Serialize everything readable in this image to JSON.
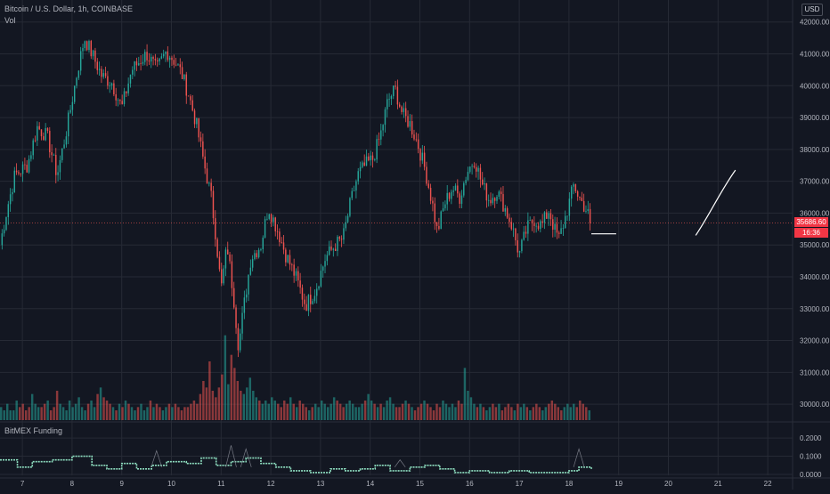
{
  "legend": {
    "symbol_line": "Bitcoin / U.S. Dollar, 1h, COINBASE",
    "volume_label": "Vol"
  },
  "currency": "USD",
  "price_tag": "35686.60",
  "countdown": "16:36",
  "colors": {
    "up": "#26a69a",
    "down": "#ef5350",
    "background": "#131722",
    "grid": "#262a35",
    "text": "#b2b5be",
    "funding": "#8fe0c1",
    "drawing": "#ffffff"
  },
  "chart_data": [
    {
      "type": "candlestick",
      "title": "Bitcoin / U.S. Dollar, 1h, COINBASE",
      "x_tick_labels": [
        "7",
        "8",
        "9",
        "10",
        "11",
        "12",
        "13",
        "14",
        "15",
        "16",
        "17",
        "18",
        "19",
        "20",
        "21",
        "22"
      ],
      "y_tick_labels": [
        "30000.00",
        "31000.00",
        "32000.00",
        "33000.00",
        "34000.00",
        "35000.00",
        "36000.00",
        "37000.00",
        "38000.00",
        "39000.00",
        "40000.00",
        "41000.00",
        "42000.00"
      ],
      "ylim": [
        29500,
        42300
      ],
      "xlim": [
        6.55,
        22.5
      ],
      "grid": true,
      "path_points": [
        [
          6.55,
          35000
        ],
        [
          6.7,
          36200
        ],
        [
          6.85,
          37200
        ],
        [
          7.1,
          37500
        ],
        [
          7.3,
          38700
        ],
        [
          7.5,
          38400
        ],
        [
          7.7,
          37200
        ],
        [
          7.9,
          38700
        ],
        [
          8.1,
          40400
        ],
        [
          8.25,
          41500
        ],
        [
          8.4,
          41000
        ],
        [
          8.6,
          40300
        ],
        [
          8.8,
          40100
        ],
        [
          9.0,
          39300
        ],
        [
          9.2,
          40500
        ],
        [
          9.5,
          41000
        ],
        [
          9.7,
          40500
        ],
        [
          9.9,
          41100
        ],
        [
          10.05,
          40800
        ],
        [
          10.2,
          40400
        ],
        [
          10.35,
          39700
        ],
        [
          10.5,
          38800
        ],
        [
          10.65,
          37600
        ],
        [
          10.8,
          36500
        ],
        [
          10.9,
          35200
        ],
        [
          11.0,
          33600
        ],
        [
          11.12,
          35000
        ],
        [
          11.25,
          33400
        ],
        [
          11.35,
          31800
        ],
        [
          11.45,
          33000
        ],
        [
          11.6,
          34600
        ],
        [
          11.8,
          35000
        ],
        [
          11.95,
          36200
        ],
        [
          12.15,
          35400
        ],
        [
          12.3,
          34700
        ],
        [
          12.5,
          34000
        ],
        [
          12.7,
          33100
        ],
        [
          12.9,
          33600
        ],
        [
          13.1,
          34600
        ],
        [
          13.3,
          35000
        ],
        [
          13.45,
          35200
        ],
        [
          13.6,
          36300
        ],
        [
          13.75,
          37200
        ],
        [
          13.9,
          37500
        ],
        [
          14.05,
          37700
        ],
        [
          14.2,
          38400
        ],
        [
          14.35,
          39500
        ],
        [
          14.5,
          39900
        ],
        [
          14.65,
          39100
        ],
        [
          14.8,
          38800
        ],
        [
          14.95,
          38200
        ],
        [
          15.1,
          37400
        ],
        [
          15.25,
          36300
        ],
        [
          15.35,
          35400
        ],
        [
          15.5,
          36300
        ],
        [
          15.65,
          36800
        ],
        [
          15.8,
          36500
        ],
        [
          15.95,
          37300
        ],
        [
          16.1,
          37700
        ],
        [
          16.25,
          36900
        ],
        [
          16.4,
          36400
        ],
        [
          16.55,
          36700
        ],
        [
          16.7,
          36200
        ],
        [
          16.85,
          35600
        ],
        [
          17.0,
          34700
        ],
        [
          17.15,
          35500
        ],
        [
          17.3,
          35800
        ],
        [
          17.45,
          35600
        ],
        [
          17.6,
          36100
        ],
        [
          17.7,
          35500
        ],
        [
          17.8,
          35200
        ],
        [
          17.95,
          36000
        ],
        [
          18.1,
          36900
        ],
        [
          18.2,
          36500
        ],
        [
          18.35,
          36100
        ],
        [
          18.45,
          35690
        ]
      ],
      "volume_scale_max": 30,
      "volume_bars": [
        4,
        3,
        5,
        3,
        3,
        6,
        4,
        5,
        3,
        4,
        8,
        5,
        4,
        4,
        5,
        6,
        3,
        4,
        9,
        5,
        4,
        3,
        6,
        4,
        5,
        7,
        4,
        3,
        5,
        6,
        4,
        8,
        10,
        7,
        6,
        5,
        4,
        3,
        5,
        4,
        6,
        5,
        4,
        3,
        4,
        5,
        3,
        4,
        6,
        4,
        5,
        4,
        3,
        4,
        5,
        4,
        5,
        4,
        3,
        4,
        4,
        5,
        6,
        5,
        8,
        12,
        10,
        18,
        9,
        7,
        10,
        14,
        26,
        11,
        20,
        16,
        12,
        9,
        8,
        10,
        13,
        9,
        7,
        6,
        5,
        6,
        5,
        7,
        6,
        5,
        4,
        6,
        5,
        7,
        5,
        4,
        6,
        5,
        4,
        3,
        4,
        5,
        4,
        6,
        5,
        4,
        5,
        7,
        6,
        5,
        4,
        5,
        6,
        5,
        4,
        4,
        5,
        6,
        8,
        6,
        5,
        4,
        5,
        4,
        6,
        7,
        5,
        4,
        4,
        5,
        6,
        5,
        4,
        3,
        4,
        5,
        6,
        5,
        4,
        3,
        5,
        4,
        6,
        5,
        4,
        5,
        4,
        6,
        5,
        16,
        9,
        7,
        5,
        4,
        5,
        4,
        3,
        4,
        5,
        4,
        5,
        3,
        4,
        5,
        4,
        3,
        5,
        4,
        5,
        4,
        3,
        4,
        5,
        4,
        3,
        4,
        5,
        6,
        5,
        4,
        3,
        4,
        5,
        4,
        5,
        4,
        6,
        5,
        4,
        3
      ],
      "drawings": [
        {
          "type": "horizontal_segment",
          "x": [
            18.45,
            18.95
          ],
          "y": 35350
        },
        {
          "type": "curve",
          "points": [
            [
              20.55,
              35300
            ],
            [
              20.85,
              36000
            ],
            [
              21.05,
              36700
            ],
            [
              21.35,
              37350
            ]
          ]
        }
      ]
    },
    {
      "type": "step",
      "title": "BitMEX Funding",
      "y_tick_labels": [
        "0.2000",
        "0.1000",
        "0.0000"
      ],
      "ylim": [
        -0.005,
        0.23
      ],
      "funding_steps": [
        [
          6.55,
          0.08
        ],
        [
          6.9,
          0.04
        ],
        [
          7.2,
          0.07
        ],
        [
          7.6,
          0.08
        ],
        [
          8.0,
          0.1
        ],
        [
          8.4,
          0.05
        ],
        [
          8.7,
          0.03
        ],
        [
          9.0,
          0.06
        ],
        [
          9.3,
          0.03
        ],
        [
          9.6,
          0.05
        ],
        [
          9.9,
          0.07
        ],
        [
          10.3,
          0.06
        ],
        [
          10.6,
          0.09
        ],
        [
          10.9,
          0.05
        ],
        [
          11.2,
          0.07
        ],
        [
          11.5,
          0.09
        ],
        [
          11.8,
          0.06
        ],
        [
          12.1,
          0.04
        ],
        [
          12.4,
          0.02
        ],
        [
          12.8,
          0.01
        ],
        [
          13.2,
          0.03
        ],
        [
          13.5,
          0.02
        ],
        [
          13.8,
          0.03
        ],
        [
          14.1,
          0.05
        ],
        [
          14.4,
          0.02
        ],
        [
          14.8,
          0.04
        ],
        [
          15.1,
          0.05
        ],
        [
          15.4,
          0.03
        ],
        [
          15.7,
          0.01
        ],
        [
          16.0,
          0.02
        ],
        [
          16.4,
          0.01
        ],
        [
          16.8,
          0.02
        ],
        [
          17.2,
          0.01
        ],
        [
          17.6,
          0.01
        ],
        [
          18.0,
          0.02
        ],
        [
          18.2,
          0.04
        ],
        [
          18.45,
          0.03
        ]
      ],
      "funding_spikes": [
        [
          9.7,
          0.13
        ],
        [
          11.2,
          0.16
        ],
        [
          11.5,
          0.14
        ],
        [
          14.6,
          0.08
        ],
        [
          18.2,
          0.14
        ]
      ]
    }
  ]
}
